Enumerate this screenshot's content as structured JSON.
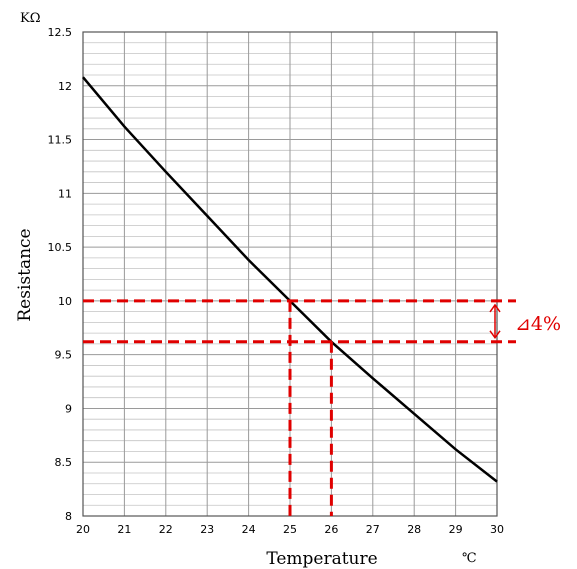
{
  "chart_data": {
    "type": "line",
    "xlabel": "Temperature",
    "ylabel": "Resistance",
    "x_unit": "℃",
    "y_unit": "KΩ",
    "xlim": [
      20,
      30
    ],
    "ylim": [
      8,
      12.5
    ],
    "x_ticks": [
      "20",
      "21",
      "22",
      "23",
      "24",
      "25",
      "26",
      "27",
      "28",
      "29",
      "30"
    ],
    "y_ticks": [
      "8",
      "8.5",
      "9",
      "9.5",
      "10",
      "10.5",
      "11",
      "11.5",
      "12",
      "12.5"
    ],
    "grid": true,
    "series": [
      {
        "x": [
          20,
          21,
          22,
          23,
          24,
          25,
          26,
          27,
          28,
          29,
          30
        ],
        "y": [
          12.08,
          11.62,
          11.2,
          10.79,
          10.38,
          10.0,
          9.62,
          9.28,
          8.95,
          8.62,
          8.32
        ]
      }
    ],
    "reference_lines": {
      "horizontal_y": [
        10.0,
        9.62
      ],
      "vertical_x": [
        25,
        26
      ],
      "color": "#e00000"
    },
    "annotation": {
      "text": "⊿4%",
      "color": "#e00000"
    }
  }
}
